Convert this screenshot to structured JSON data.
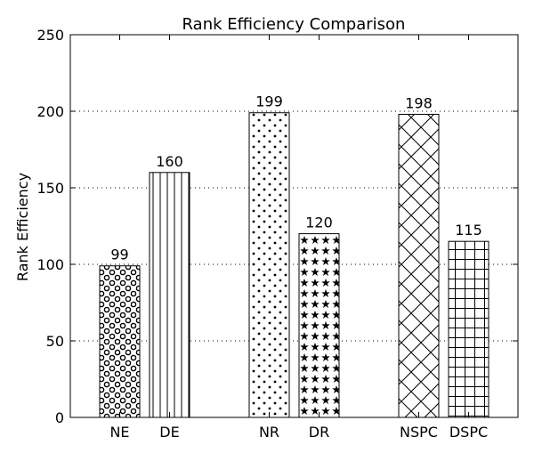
{
  "chart_data": {
    "type": "bar",
    "title": "Rank Efficiency Comparison",
    "xlabel": "",
    "ylabel": "Rank Efficiency",
    "ylim": [
      0,
      250
    ],
    "yticks": [
      0,
      50,
      100,
      150,
      200,
      250
    ],
    "grid": "y-dotted",
    "groups": [
      {
        "bars": [
          {
            "category": "NE",
            "value": 99,
            "label": "99",
            "pattern": "circles"
          },
          {
            "category": "DE",
            "value": 160,
            "label": "160",
            "pattern": "vertical-lines"
          }
        ]
      },
      {
        "bars": [
          {
            "category": "NR",
            "value": 199,
            "label": "199",
            "pattern": "dots"
          },
          {
            "category": "DR",
            "value": 120,
            "label": "120",
            "pattern": "stars"
          }
        ]
      },
      {
        "bars": [
          {
            "category": "NSPC",
            "value": 198,
            "label": "198",
            "pattern": "crosshatch-diagonal"
          },
          {
            "category": "DSPC",
            "value": 115,
            "label": "115",
            "pattern": "grid"
          }
        ]
      }
    ],
    "colors": {
      "bar_fill": "#ffffff",
      "bar_stroke": "#000000",
      "pattern": "#000000"
    }
  }
}
